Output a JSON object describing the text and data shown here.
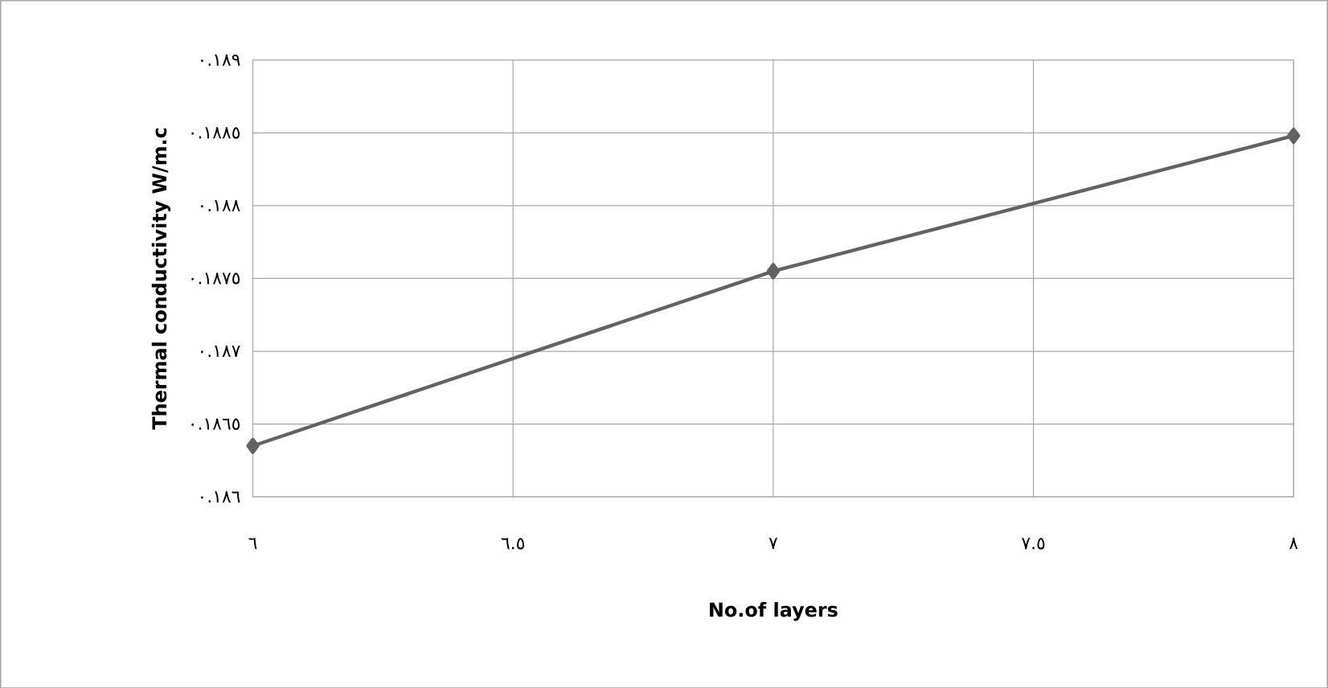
{
  "chart_data": {
    "type": "line",
    "xlabel": "No.of layers",
    "ylabel": "Thermal conductivity W/m.c",
    "x": [
      6,
      7,
      8
    ],
    "series": [
      {
        "color": "#626262",
        "values": [
          0.18635,
          0.18755,
          0.18848
        ]
      }
    ],
    "xlim": [
      6,
      8
    ],
    "ylim": [
      0.186,
      0.189
    ],
    "xticks": [
      {
        "value": 6,
        "label": "٦"
      },
      {
        "value": 6.5,
        "label": "٦.٥"
      },
      {
        "value": 7,
        "label": "٧"
      },
      {
        "value": 7.5,
        "label": "٧.٥"
      },
      {
        "value": 8,
        "label": "٨"
      }
    ],
    "yticks": [
      {
        "value": 0.186,
        "label": "٠.١٨٦"
      },
      {
        "value": 0.1865,
        "label": "٠.١٨٦٥"
      },
      {
        "value": 0.187,
        "label": "٠.١٨٧"
      },
      {
        "value": 0.1875,
        "label": "٠.١٨٧٥"
      },
      {
        "value": 0.188,
        "label": "٠.١٨٨"
      },
      {
        "value": 0.1885,
        "label": "٠.١٨٨٥"
      },
      {
        "value": 0.189,
        "label": "٠.١٨٩"
      }
    ],
    "grid": true,
    "marker": "diamond",
    "line_style": "solid"
  }
}
